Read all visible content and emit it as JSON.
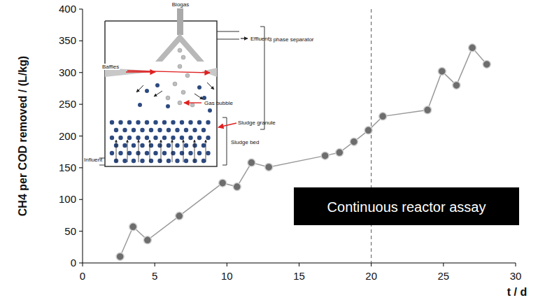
{
  "chart_data": {
    "type": "line",
    "x_label": "t / d",
    "y_label": "CH4 per COD removed / (L/kg)",
    "x": [
      2.6,
      3.5,
      4.5,
      6.7,
      9.7,
      10.7,
      11.7,
      12.9,
      16.8,
      17.8,
      18.8,
      19.8,
      20.8,
      23.9,
      24.9,
      25.9,
      27.0,
      28.0
    ],
    "values": [
      10,
      57,
      36,
      74,
      126,
      120,
      158,
      151,
      169,
      174,
      191,
      209,
      231,
      241,
      302,
      280,
      339,
      313
    ],
    "color": "#9a9a9a",
    "marker": "circle",
    "line_style": "solid",
    "xlim": [
      0,
      30
    ],
    "xticks": [
      0,
      5,
      10,
      15,
      20,
      25,
      30
    ],
    "ylim": [
      0,
      400
    ],
    "yticks": [
      0,
      50,
      100,
      150,
      200,
      250,
      300,
      350,
      400
    ],
    "grid": false,
    "vlines": [
      20
    ],
    "annotations": [
      "Continuous reactor assay"
    ],
    "inset_labels": [
      "Biogas",
      "Effluent",
      "3 phase separator",
      "Baffles",
      "Gas bubble",
      "Sludge granule",
      "Sludge bed",
      "Influent"
    ]
  }
}
